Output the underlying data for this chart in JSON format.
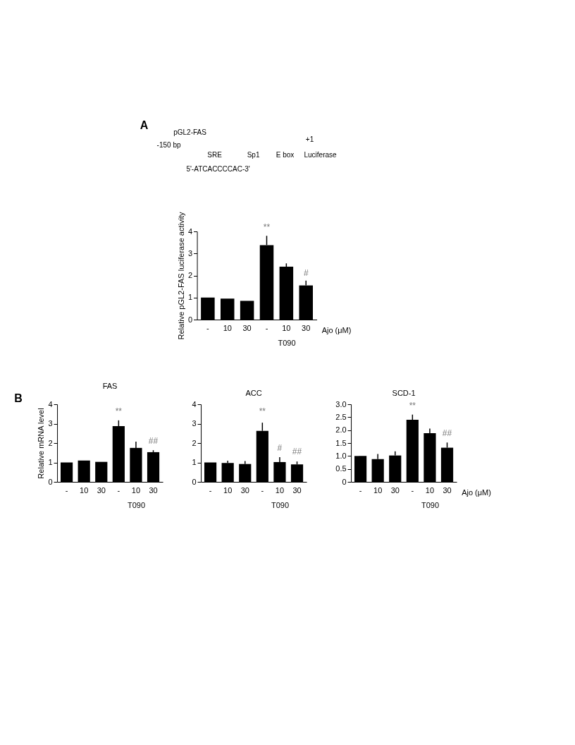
{
  "chart_data": [
    {
      "type": "bar",
      "ylabel": "Relative pGL2-FAS luciferase activity",
      "xlabel": "Ajo (μM)",
      "categories": [
        "-",
        "10",
        "30",
        "-",
        "10",
        "30"
      ],
      "series": [
        {
          "color": "#000000",
          "values": [
            1.0,
            0.95,
            0.85,
            3.38,
            2.4,
            1.55
          ],
          "errors": [
            null,
            null,
            null,
            [
              3.38,
              3.8
            ],
            [
              2.4,
              2.55
            ],
            [
              1.55,
              1.77
            ]
          ]
        }
      ],
      "ylim": [
        0,
        4
      ],
      "yticks": [
        0,
        1,
        2,
        3,
        4
      ],
      "annotations": [
        "A",
        "pGL2-FAS",
        "-150 bp",
        "SRE",
        "Sp1",
        "E box",
        "+1",
        "Luciferase",
        "5'-ATCACCCCAC-3'",
        "**",
        "#",
        "T090"
      ]
    },
    {
      "type": "bar",
      "title": "FAS",
      "ylabel": "Relative mRNA level",
      "categories": [
        "-",
        "10",
        "30",
        "-",
        "10",
        "30"
      ],
      "series": [
        {
          "color": "#000000",
          "values": [
            1.0,
            1.1,
            1.03,
            2.87,
            1.75,
            1.53
          ],
          "errors": [
            null,
            null,
            null,
            [
              2.87,
              3.17
            ],
            [
              1.75,
              2.07
            ],
            [
              1.53,
              1.63
            ]
          ]
        }
      ],
      "ylim": [
        0,
        4
      ],
      "yticks": [
        0,
        1,
        2,
        3,
        4
      ],
      "annotations": [
        "B",
        "**",
        "##",
        "T090"
      ]
    },
    {
      "type": "bar",
      "title": "ACC",
      "categories": [
        "-",
        "10",
        "30",
        "-",
        "10",
        "30"
      ],
      "series": [
        {
          "color": "#000000",
          "values": [
            1.0,
            0.97,
            0.92,
            2.63,
            1.02,
            0.9
          ],
          "errors": [
            null,
            [
              0.97,
              1.09
            ],
            [
              0.92,
              1.07
            ],
            [
              2.63,
              3.05
            ],
            [
              1.02,
              1.27
            ],
            [
              0.9,
              1.05
            ]
          ]
        }
      ],
      "ylim": [
        0,
        4
      ],
      "yticks": [
        0,
        1,
        2,
        3,
        4
      ],
      "annotations": [
        "**",
        "#",
        "##",
        "T090"
      ]
    },
    {
      "type": "bar",
      "title": "SCD-1",
      "xlabel": "Ajo (μM)",
      "categories": [
        "-",
        "10",
        "30",
        "-",
        "10",
        "30"
      ],
      "series": [
        {
          "color": "#000000",
          "values": [
            1.0,
            0.88,
            1.02,
            2.4,
            1.88,
            1.32
          ],
          "errors": [
            null,
            [
              0.88,
              1.08
            ],
            [
              1.02,
              1.18
            ],
            [
              2.4,
              2.6
            ],
            [
              1.88,
              2.06
            ],
            [
              1.32,
              1.52
            ]
          ]
        }
      ],
      "ylim": [
        0,
        3
      ],
      "yticks": [
        {
          "value": 0,
          "label": "0"
        },
        0.5,
        {
          "value": 1,
          "label": "1.0"
        },
        1.5,
        {
          "value": 2,
          "label": "2.0"
        },
        2.5,
        {
          "value": 3,
          "label": "3.0"
        }
      ],
      "annotations": [
        "**",
        "##",
        "T090"
      ]
    }
  ]
}
